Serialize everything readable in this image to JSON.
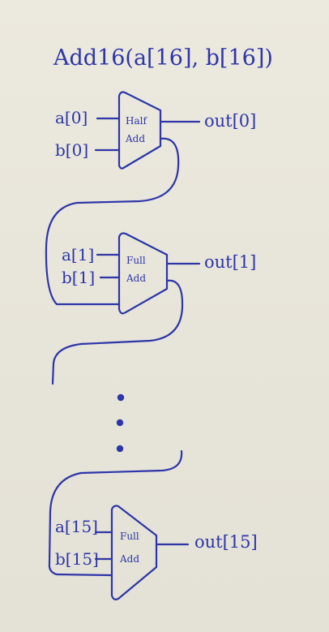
{
  "title": "Add16(a[16], b[16])",
  "adders": [
    {
      "inputs": [
        "a[0]",
        "b[0]"
      ],
      "gate": [
        "Half",
        "Add"
      ],
      "output": "out[0]"
    },
    {
      "inputs": [
        "a[1]",
        "b[1]"
      ],
      "gate": [
        "Full",
        "Add"
      ],
      "output": "out[1]"
    },
    {
      "inputs": [
        "a[15]",
        "b[15]"
      ],
      "gate": [
        "Full",
        "Add"
      ],
      "output": "out[15]"
    }
  ],
  "colors": {
    "ink": "#2d35a8",
    "paper": "#e9e6dc"
  }
}
